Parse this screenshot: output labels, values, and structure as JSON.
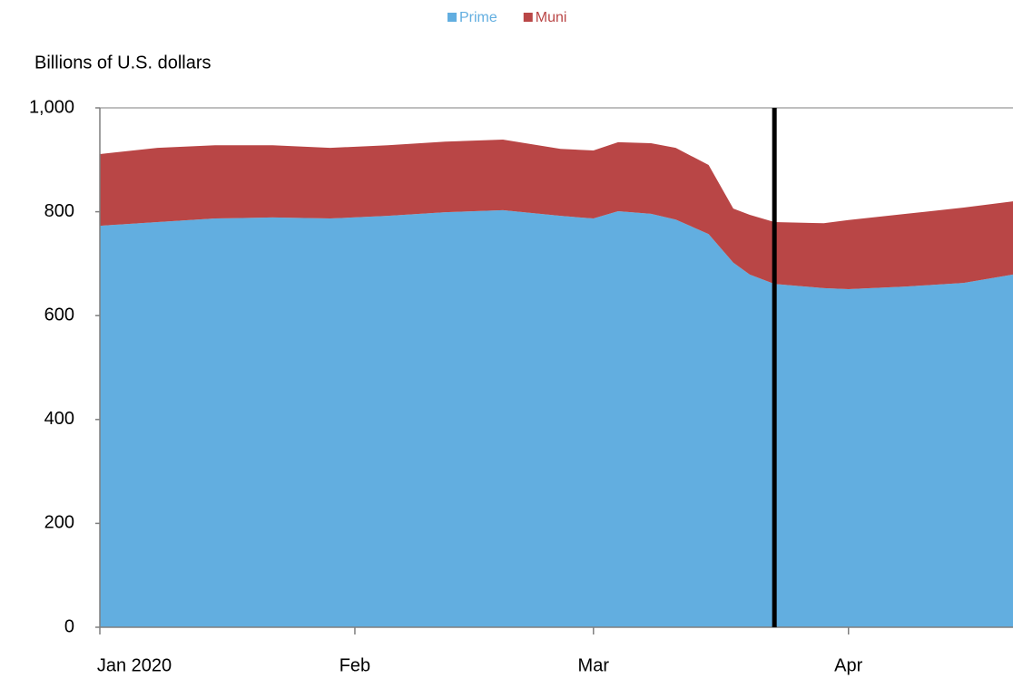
{
  "chart_data": {
    "type": "stacked_area",
    "y_label": "Billions of U.S. dollars",
    "x": [
      0,
      7,
      14,
      21,
      28,
      35,
      42,
      49,
      56,
      60,
      63,
      67,
      70,
      74,
      77,
      79,
      82,
      88,
      91,
      98,
      105,
      111
    ],
    "series": [
      {
        "name": "Prime",
        "color": "#62aee0",
        "values": [
          773,
          780,
          787,
          789,
          787,
          792,
          799,
          803,
          792,
          787,
          801,
          796,
          785,
          757,
          702,
          679,
          661,
          653,
          651,
          656,
          663,
          679
        ]
      },
      {
        "name": "Muni",
        "color": "#b94646",
        "values": [
          138,
          143,
          141,
          139,
          136,
          136,
          136,
          136,
          129,
          131,
          133,
          136,
          138,
          133,
          104,
          115,
          119,
          125,
          133,
          140,
          145,
          141
        ]
      }
    ],
    "xlim": [
      0,
      111
    ],
    "xticks": [
      {
        "value": 0,
        "label": "Jan 2020"
      },
      {
        "value": 31,
        "label": "Feb"
      },
      {
        "value": 60,
        "label": "Mar"
      },
      {
        "value": 91,
        "label": "Apr"
      }
    ],
    "ylim": [
      0,
      1000
    ],
    "yticks": [
      0,
      200,
      400,
      600,
      800,
      {
        "value": 1000,
        "label": "1,000"
      }
    ],
    "vline": 82,
    "vline_color": "#000000",
    "legend": "top"
  }
}
